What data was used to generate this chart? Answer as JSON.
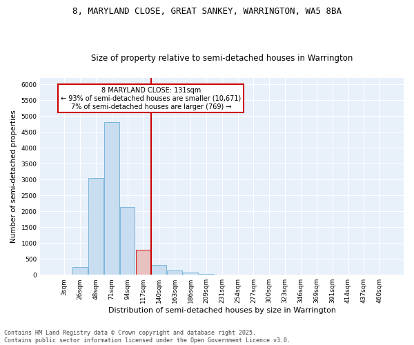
{
  "title1": "8, MARYLAND CLOSE, GREAT SANKEY, WARRINGTON, WA5 8BA",
  "title2": "Size of property relative to semi-detached houses in Warrington",
  "xlabel": "Distribution of semi-detached houses by size in Warrington",
  "ylabel": "Number of semi-detached properties",
  "bar_labels": [
    "3sqm",
    "26sqm",
    "48sqm",
    "71sqm",
    "94sqm",
    "117sqm",
    "140sqm",
    "163sqm",
    "186sqm",
    "209sqm",
    "231sqm",
    "254sqm",
    "277sqm",
    "300sqm",
    "323sqm",
    "346sqm",
    "369sqm",
    "391sqm",
    "414sqm",
    "437sqm",
    "460sqm"
  ],
  "bar_values": [
    0,
    240,
    3050,
    4800,
    2130,
    780,
    310,
    140,
    70,
    35,
    0,
    0,
    0,
    0,
    0,
    0,
    0,
    0,
    0,
    0,
    0
  ],
  "bar_color": "#c8ddf0",
  "bar_edgecolor": "#6aaed6",
  "highlight_bar_index": 5,
  "highlight_bar_color": "#e8c0c0",
  "highlight_bar_edgecolor": "#cc0000",
  "annotation_text": "8 MARYLAND CLOSE: 131sqm\n← 93% of semi-detached houses are smaller (10,671)\n7% of semi-detached houses are larger (769) →",
  "annotation_box_facecolor": "#ffffff",
  "annotation_box_edgecolor": "#cc0000",
  "vline_color": "#cc0000",
  "ylim": [
    0,
    6200
  ],
  "yticks": [
    0,
    500,
    1000,
    1500,
    2000,
    2500,
    3000,
    3500,
    4000,
    4500,
    5000,
    5500,
    6000
  ],
  "footer_text": "Contains HM Land Registry data © Crown copyright and database right 2025.\nContains public sector information licensed under the Open Government Licence v3.0.",
  "bg_color": "#e8f0fa",
  "grid_color": "#ffffff",
  "title1_fontsize": 9,
  "title2_fontsize": 8.5,
  "ylabel_fontsize": 7.5,
  "xlabel_fontsize": 8,
  "tick_fontsize": 6.5,
  "footer_fontsize": 6,
  "annotation_fontsize": 7
}
